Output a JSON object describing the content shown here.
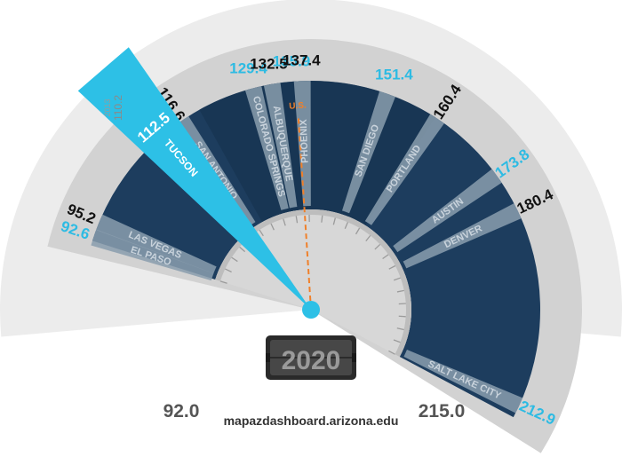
{
  "chart_data": {
    "type": "radial-gauge",
    "year": "2020",
    "range": {
      "min": 92.0,
      "max": 215.0
    },
    "range_labels": {
      "min": "92.0",
      "max": "215.0"
    },
    "highlight": {
      "city": "TUCSON",
      "value": 112.5,
      "label": "112.5"
    },
    "previous": {
      "year": "2013",
      "value": 110.2,
      "label": "110.2"
    },
    "us": {
      "label": "U.S.",
      "value": 136.4
    },
    "footer": "mapazdashboard.arizona.edu",
    "colors": {
      "panel": "#1d3d5e",
      "panel_dark": "#16324f",
      "ray": "#8a9eae",
      "highlight": "#2dc0e6",
      "accent_text": "#2dbbe3",
      "us_line": "#f0802a"
    },
    "cities": [
      {
        "name": "EL PASO",
        "value": 92.6,
        "label": "92.6",
        "label_color": "blue"
      },
      {
        "name": "LAS VEGAS",
        "value": 95.2,
        "label": "95.2",
        "label_color": "black"
      },
      {
        "name": "TUCSON",
        "value": 112.5,
        "label": "112.5",
        "label_color": "white"
      },
      {
        "name": "SAN ANTONIO",
        "value": 116.6,
        "label": "116.6",
        "label_color": "black"
      },
      {
        "name": "COLORADO SPRINGS",
        "value": 129.4,
        "label": "129.4",
        "label_color": "blue"
      },
      {
        "name": "ALBUQUERQUE",
        "value": 132.5,
        "label": "132.5",
        "label_color": "black"
      },
      {
        "name": "",
        "value": 135.9,
        "label": "135.9",
        "label_color": "blue"
      },
      {
        "name": "PHOENIX",
        "value": 137.4,
        "label": "137.4",
        "label_color": "black"
      },
      {
        "name": "SAN DIEGO",
        "value": 151.4,
        "label": "151.4",
        "label_color": "blue"
      },
      {
        "name": "PORTLAND",
        "value": 160.4,
        "label": "160.4",
        "label_color": "black"
      },
      {
        "name": "AUSTIN",
        "value": 173.8,
        "label": "173.8",
        "label_color": "blue"
      },
      {
        "name": "DENVER",
        "value": 180.4,
        "label": "180.4",
        "label_color": "black"
      },
      {
        "name": "SALT LAKE CITY",
        "value": 212.9,
        "label": "212.9",
        "label_color": "blue"
      }
    ]
  }
}
